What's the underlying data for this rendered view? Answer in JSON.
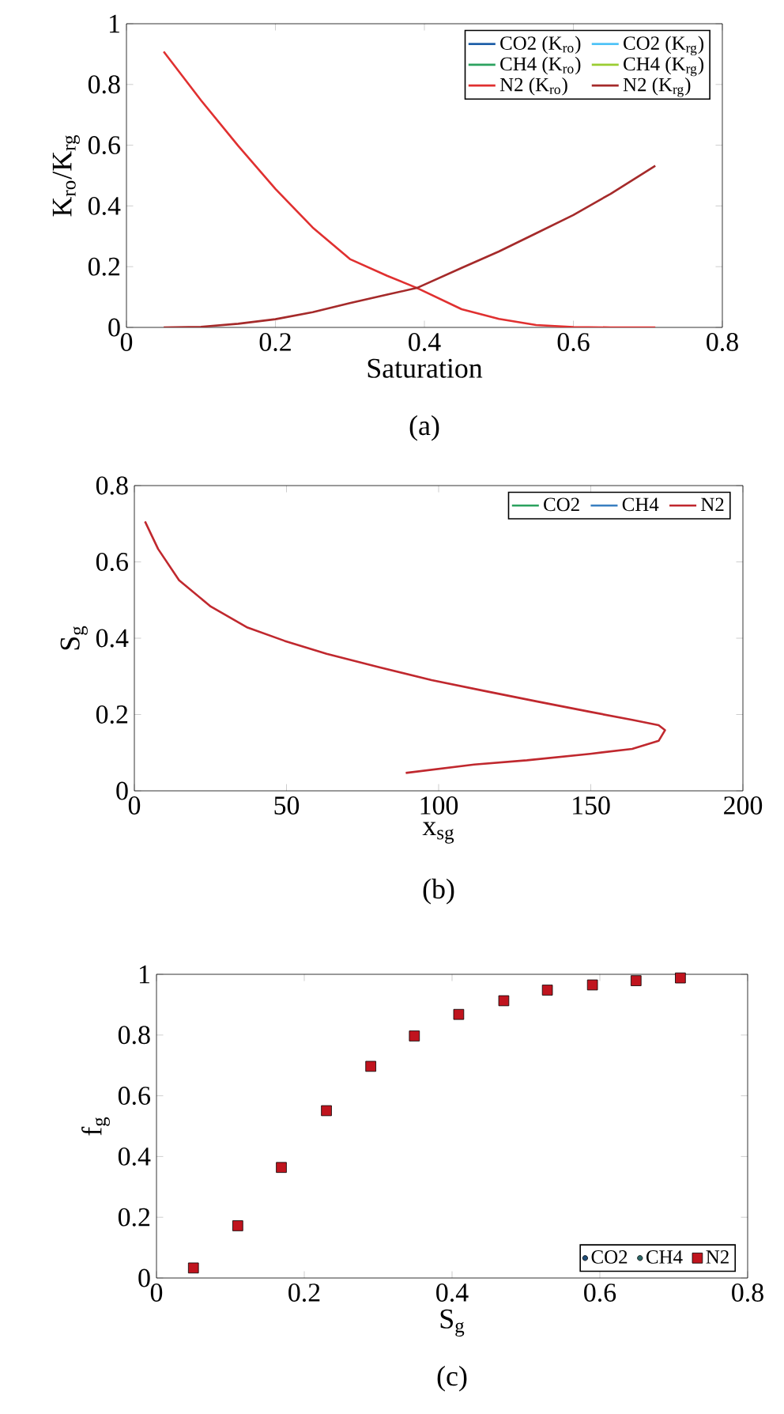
{
  "chart_data": [
    {
      "type": "line",
      "xlabel": "Saturation",
      "ylabel": "K$_{ro}$/K$_{rg}$",
      "annotations": [
        "(a)"
      ],
      "x": [
        0.05,
        0.1,
        0.15,
        0.2,
        0.25,
        0.3,
        0.35,
        0.39,
        0.45,
        0.5,
        0.55,
        0.6,
        0.65,
        0.71
      ],
      "series": [
        {
          "name": "CO2 (K$_{ro}$)",
          "color": "#1f5fa8",
          "values": [
            null,
            null,
            null,
            null,
            null,
            null,
            null,
            null,
            null,
            null,
            null,
            null,
            null,
            null
          ]
        },
        {
          "name": "CO2 (K$_{rg}$)",
          "color": "#4fc3f7",
          "values": [
            null,
            null,
            null,
            null,
            null,
            null,
            null,
            null,
            null,
            null,
            null,
            null,
            null,
            null
          ]
        },
        {
          "name": "CH4 (K$_{ro}$)",
          "color": "#2ca25f",
          "values": [
            null,
            null,
            null,
            null,
            null,
            null,
            null,
            null,
            null,
            null,
            null,
            null,
            null,
            null
          ]
        },
        {
          "name": "CH4 (K$_{rg}$)",
          "color": "#9acd32",
          "values": [
            null,
            null,
            null,
            null,
            null,
            null,
            null,
            null,
            null,
            null,
            null,
            null,
            null,
            null
          ]
        },
        {
          "name": "N2 (K$_{ro}$)",
          "color": "#e03030",
          "values": [
            0.908,
            0.748,
            0.598,
            0.456,
            0.329,
            0.225,
            0.17,
            0.13,
            0.06,
            0.028,
            0.008,
            0.001,
            0,
            0
          ]
        },
        {
          "name": "N2 (K$_{rg}$)",
          "color": "#a52a2a",
          "values": [
            0,
            0.002,
            0.012,
            0.027,
            0.05,
            0.08,
            0.108,
            0.13,
            0.196,
            0.25,
            0.31,
            0.37,
            0.44,
            0.532
          ]
        }
      ],
      "xlim": [
        0,
        0.8
      ],
      "ylim": [
        0,
        1
      ],
      "xticks": [
        0,
        0.2,
        0.4,
        0.6,
        0.8
      ],
      "yticks": [
        0,
        0.2,
        0.4,
        0.6,
        0.8,
        1
      ],
      "legend": "top right"
    },
    {
      "type": "line",
      "xlabel": "x$_{sg}$",
      "ylabel": "S$_{g}$",
      "annotations": [
        "(b)"
      ],
      "x": [
        3.5,
        7.8,
        14.7,
        25.1,
        37.2,
        49.4,
        63.2,
        80.5,
        97.7,
        115,
        132.5,
        149.8,
        163.6,
        172.3,
        174.4,
        172.3,
        163.6,
        149.8,
        129,
        111.7,
        89.2
      ],
      "series": [
        {
          "name": "CO2",
          "color": "#2ca25f",
          "values": [
            null,
            null,
            null,
            null,
            null,
            null,
            null,
            null,
            null,
            null,
            null,
            null,
            null,
            null,
            null,
            null,
            null,
            null,
            null,
            null,
            null
          ]
        },
        {
          "name": "CH4",
          "color": "#3a7fc1",
          "values": [
            null,
            null,
            null,
            null,
            null,
            null,
            null,
            null,
            null,
            null,
            null,
            null,
            null,
            null,
            null,
            null,
            null,
            null,
            null,
            null,
            null
          ]
        },
        {
          "name": "N2",
          "color": "#c0282e",
          "values": [
            0.706,
            0.634,
            0.552,
            0.483,
            0.428,
            0.393,
            0.359,
            0.324,
            0.29,
            0.262,
            0.234,
            0.207,
            0.186,
            0.172,
            0.159,
            0.131,
            0.11,
            0.097,
            0.08,
            0.069,
            0.047
          ]
        }
      ],
      "xlim": [
        0,
        200
      ],
      "ylim": [
        0,
        0.8
      ],
      "xticks": [
        0,
        50,
        100,
        150,
        200
      ],
      "yticks": [
        0,
        0.2,
        0.4,
        0.6,
        0.8
      ],
      "legend": "top right"
    },
    {
      "type": "scatter",
      "xlabel": "S$_{g}$",
      "ylabel": "f$_{g}$",
      "annotations": [
        "(c)"
      ],
      "x": [
        0.05,
        0.11,
        0.169,
        0.23,
        0.29,
        0.349,
        0.409,
        0.47,
        0.529,
        0.59,
        0.649,
        0.709
      ],
      "series": [
        {
          "name": "CO2",
          "color": "#1f4e79",
          "marker": "circle",
          "values": [
            null,
            null,
            null,
            null,
            null,
            null,
            null,
            null,
            null,
            null,
            null,
            null
          ]
        },
        {
          "name": "CH4",
          "color": "#2e6b6b",
          "marker": "circle",
          "values": [
            null,
            null,
            null,
            null,
            null,
            null,
            null,
            null,
            null,
            null,
            null,
            null
          ]
        },
        {
          "name": "N2",
          "color": "#c0141e",
          "marker": "square",
          "values": [
            0.033,
            0.172,
            0.364,
            0.551,
            0.697,
            0.797,
            0.868,
            0.913,
            0.948,
            0.965,
            0.979,
            0.988
          ]
        }
      ],
      "xlim": [
        0,
        0.8
      ],
      "ylim": [
        0,
        1
      ],
      "xticks": [
        0,
        0.2,
        0.4,
        0.6,
        0.8
      ],
      "yticks": [
        0,
        0.2,
        0.4,
        0.6,
        0.8,
        1
      ],
      "legend": "bottom right"
    }
  ]
}
